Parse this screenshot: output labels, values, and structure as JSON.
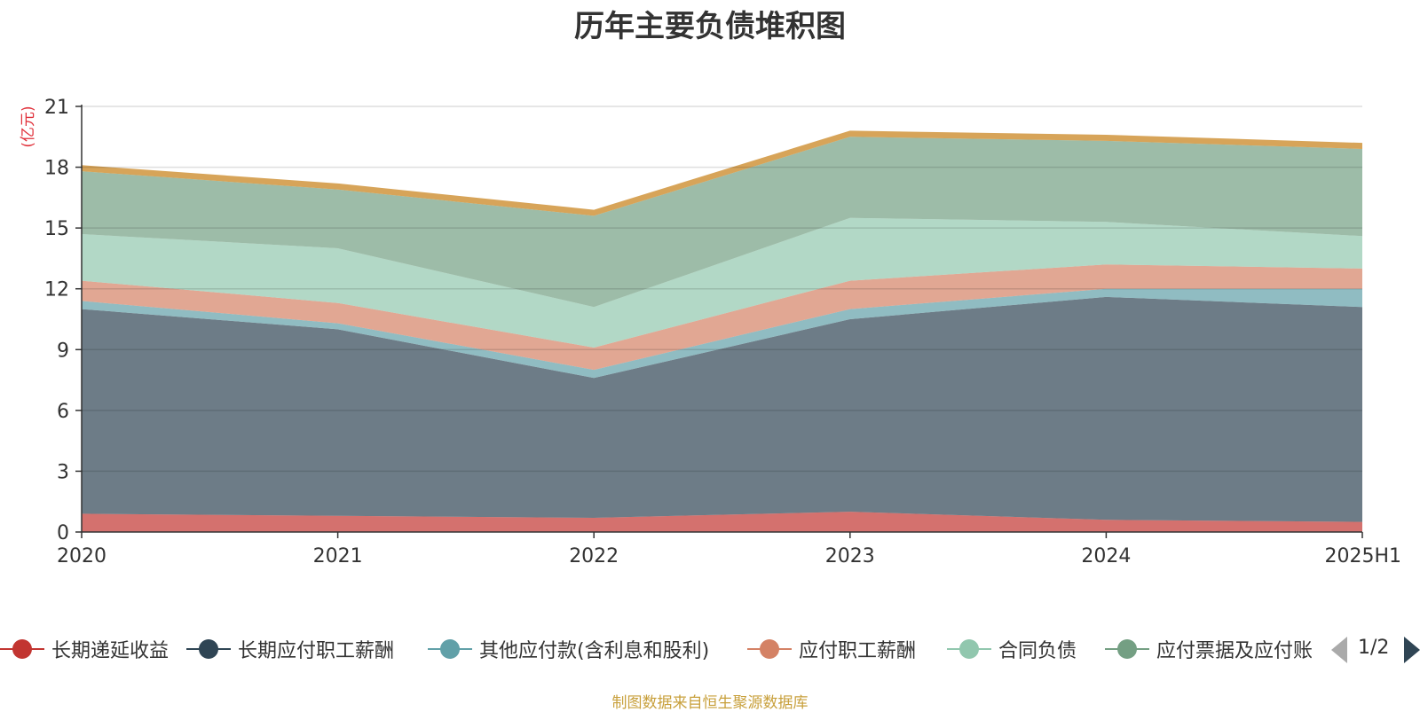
{
  "chart_data": {
    "type": "area",
    "stacked": true,
    "title": "历年主要负债堆积图",
    "ylabel": "(亿元)",
    "categories": [
      "2020",
      "2021",
      "2022",
      "2023",
      "2024",
      "2025H1"
    ],
    "ylim": [
      0,
      21
    ],
    "yticks": [
      0,
      3,
      6,
      9,
      12,
      15,
      18,
      21
    ],
    "grid": true,
    "legend_position": "bottom",
    "series": [
      {
        "name": "长期递延收益",
        "color": "#c23531",
        "values": [
          0.9,
          0.8,
          0.7,
          1.0,
          0.6,
          0.5
        ]
      },
      {
        "name": "长期应付职工薪酬",
        "color": "#2f4554",
        "values": [
          10.1,
          9.2,
          6.9,
          9.5,
          11.0,
          10.6
        ]
      },
      {
        "name": "其他应付款(含利息和股利)",
        "color": "#61a0a8",
        "values": [
          0.4,
          0.3,
          0.4,
          0.5,
          0.4,
          0.9
        ]
      },
      {
        "name": "应付职工薪酬",
        "color": "#d48265",
        "values": [
          1.0,
          1.0,
          1.1,
          1.4,
          1.2,
          1.0
        ]
      },
      {
        "name": "合同负债",
        "color": "#91c7ae",
        "values": [
          2.3,
          2.7,
          2.0,
          3.1,
          2.1,
          1.6
        ]
      },
      {
        "name": "应付票据及应付账款",
        "color": "#749f83",
        "values": [
          3.1,
          2.9,
          4.5,
          4.0,
          4.0,
          4.3
        ]
      },
      {
        "name": "",
        "color": "#ca8622",
        "values": [
          0.3,
          0.3,
          0.3,
          0.3,
          0.3,
          0.3
        ]
      }
    ]
  },
  "legend": {
    "labels": [
      "长期递延收益",
      "长期应付职工薪酬",
      "其他应付款(含利息和股利)",
      "应付职工薪酬",
      "合同负债",
      "应付票据及应付账款"
    ],
    "page_indicator": "1/2"
  },
  "source_note": "制图数据来自恒生聚源数据库",
  "colors": {
    "axis": "#333333",
    "grid": "#cccccc",
    "unit_label": "#e0303a",
    "source_note": "#c8a03c"
  }
}
